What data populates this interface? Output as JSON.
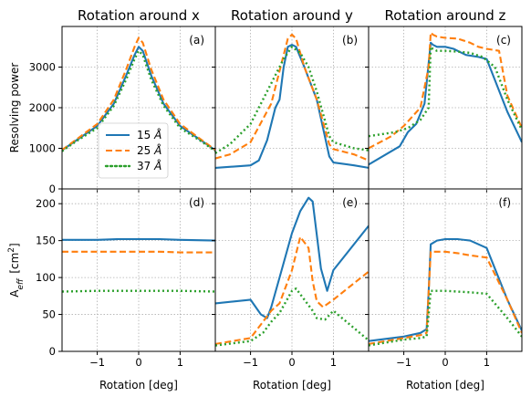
{
  "chart_data": {
    "type": "line",
    "column_titles": [
      "Rotation around x",
      "Rotation around y",
      "Rotation around z"
    ],
    "xlabel": "Rotation [deg]",
    "xlim": [
      -1.85,
      1.85
    ],
    "xticks": [
      -1,
      0,
      1
    ],
    "xtick_labels": [
      "−1",
      "0",
      "1"
    ],
    "grid": true,
    "legend": {
      "placement": "lower-right of panel (a)",
      "entries": [
        "15 Å",
        "25 Å",
        "37 Å"
      ]
    },
    "series_styles": [
      {
        "name": "15 Å",
        "color": "#1f77b4",
        "dash": "solid"
      },
      {
        "name": "25 Å",
        "color": "#ff7f0e",
        "dash": "dashed"
      },
      {
        "name": "37 Å",
        "color": "#2ca02c",
        "dash": "dotted"
      }
    ],
    "rows": [
      {
        "ylabel": "Resolving power",
        "ylim": [
          0,
          4000
        ],
        "yticks": [
          0,
          1000,
          2000,
          3000
        ],
        "ytick_labels": [
          "0",
          "1000",
          "2000",
          "3000"
        ],
        "panels": [
          {
            "letter": "(a)",
            "series": [
              {
                "name": "15 Å",
                "x": [
                  -1.85,
                  -1.5,
                  -1.0,
                  -0.6,
                  -0.3,
                  -0.1,
                  0.0,
                  0.1,
                  0.3,
                  0.6,
                  1.0,
                  1.5,
                  1.85
                ],
                "y": [
                  950,
                  1200,
                  1550,
                  2100,
                  2800,
                  3300,
                  3500,
                  3400,
                  2800,
                  2100,
                  1550,
                  1200,
                  950
                ]
              },
              {
                "name": "25 Å",
                "x": [
                  -1.85,
                  -1.5,
                  -1.0,
                  -0.6,
                  -0.3,
                  -0.1,
                  0.0,
                  0.1,
                  0.3,
                  0.6,
                  1.0,
                  1.5,
                  1.85
                ],
                "y": [
                  960,
                  1220,
                  1600,
                  2200,
                  2950,
                  3500,
                  3720,
                  3600,
                  2950,
                  2200,
                  1600,
                  1220,
                  960
                ]
              },
              {
                "name": "37 Å",
                "x": [
                  -1.85,
                  -1.5,
                  -1.0,
                  -0.6,
                  -0.3,
                  -0.1,
                  0.0,
                  0.1,
                  0.3,
                  0.6,
                  1.0,
                  1.5,
                  1.85
                ],
                "y": [
                  930,
                  1180,
                  1500,
                  2050,
                  2700,
                  3200,
                  3400,
                  3300,
                  2700,
                  2050,
                  1500,
                  1180,
                  930
                ]
              }
            ]
          },
          {
            "letter": "(b)",
            "series": [
              {
                "name": "15 Å",
                "x": [
                  -1.85,
                  -1.0,
                  -0.8,
                  -0.6,
                  -0.4,
                  -0.3,
                  -0.2,
                  -0.1,
                  0.0,
                  0.1,
                  0.3,
                  0.6,
                  0.9,
                  1.0,
                  1.5,
                  1.85
                ],
                "y": [
                  520,
                  580,
                  700,
                  1200,
                  2000,
                  2200,
                  3000,
                  3500,
                  3550,
                  3500,
                  3000,
                  2200,
                  800,
                  650,
                  580,
                  520
                ]
              },
              {
                "name": "25 Å",
                "x": [
                  -1.85,
                  -1.5,
                  -1.0,
                  -0.5,
                  -0.2,
                  -0.1,
                  0.0,
                  0.1,
                  0.3,
                  0.6,
                  0.9,
                  1.0,
                  1.5,
                  1.85
                ],
                "y": [
                  750,
                  850,
                  1150,
                  2100,
                  3300,
                  3700,
                  3800,
                  3700,
                  3000,
                  2200,
                  1100,
                  980,
                  850,
                  700
                ]
              },
              {
                "name": "37 Å",
                "x": [
                  -1.85,
                  -1.5,
                  -1.0,
                  -0.5,
                  -0.2,
                  0.0,
                  0.2,
                  0.4,
                  0.6,
                  0.9,
                  1.0,
                  1.5,
                  1.85
                ],
                "y": [
                  880,
                  1100,
                  1600,
                  2600,
                  3200,
                  3500,
                  3350,
                  3000,
                  2400,
                  1300,
                  1150,
                  1000,
                  950
                ]
              }
            ]
          },
          {
            "letter": "(c)",
            "series": [
              {
                "name": "15 Å",
                "x": [
                  -1.85,
                  -1.1,
                  -0.9,
                  -0.7,
                  -0.5,
                  -0.35,
                  -0.3,
                  -0.2,
                  0.0,
                  0.2,
                  0.5,
                  0.8,
                  1.0,
                  1.5,
                  1.85
                ],
                "y": [
                  600,
                  1050,
                  1400,
                  1600,
                  2100,
                  3600,
                  3550,
                  3500,
                  3500,
                  3450,
                  3300,
                  3250,
                  3200,
                  1900,
                  1150
                ]
              },
              {
                "name": "25 Å",
                "x": [
                  -1.85,
                  -1.3,
                  -1.0,
                  -0.6,
                  -0.4,
                  -0.35,
                  -0.3,
                  -0.2,
                  0.0,
                  0.3,
                  0.6,
                  0.8,
                  1.0,
                  1.3,
                  1.5,
                  1.85
                ],
                "y": [
                  1000,
                  1300,
                  1550,
                  2000,
                  3000,
                  3850,
                  3800,
                  3750,
                  3720,
                  3700,
                  3600,
                  3500,
                  3450,
                  3400,
                  2300,
                  1500
                ]
              },
              {
                "name": "37 Å",
                "x": [
                  -1.85,
                  -1.2,
                  -0.9,
                  -0.6,
                  -0.4,
                  -0.35,
                  -0.3,
                  -0.2,
                  0.0,
                  0.3,
                  0.6,
                  0.9,
                  1.2,
                  1.5,
                  1.85
                ],
                "y": [
                  1300,
                  1400,
                  1500,
                  1700,
                  2000,
                  3500,
                  3450,
                  3400,
                  3400,
                  3380,
                  3350,
                  3250,
                  3000,
                  2200,
                  1450
                ]
              }
            ]
          }
        ]
      },
      {
        "ylabel": "A_eff [cm²]",
        "ylim": [
          0,
          220
        ],
        "yticks": [
          0,
          50,
          100,
          150,
          200
        ],
        "ytick_labels": [
          "0",
          "50",
          "100",
          "150",
          "200"
        ],
        "panels": [
          {
            "letter": "(d)",
            "series": [
              {
                "name": "15 Å",
                "x": [
                  -1.85,
                  -1.0,
                  -0.5,
                  0.0,
                  0.5,
                  1.0,
                  1.85
                ],
                "y": [
                  151,
                  151,
                  152,
                  152,
                  152,
                  151,
                  150
                ]
              },
              {
                "name": "25 Å",
                "x": [
                  -1.85,
                  -1.0,
                  -0.5,
                  0.0,
                  0.5,
                  1.0,
                  1.85
                ],
                "y": [
                  135,
                  135,
                  135,
                  135,
                  135,
                  134,
                  134
                ]
              },
              {
                "name": "37 Å",
                "x": [
                  -1.85,
                  -1.0,
                  -0.5,
                  0.0,
                  0.5,
                  1.0,
                  1.85
                ],
                "y": [
                  81,
                  82,
                  82,
                  82,
                  82,
                  82,
                  81
                ]
              }
            ]
          },
          {
            "letter": "(e)",
            "series": [
              {
                "name": "15 Å",
                "x": [
                  -1.85,
                  -1.0,
                  -0.75,
                  -0.6,
                  -0.5,
                  -0.3,
                  0.0,
                  0.2,
                  0.4,
                  0.5,
                  0.7,
                  0.85,
                  1.0,
                  1.85
                ],
                "y": [
                  65,
                  70,
                  50,
                  45,
                  60,
                  100,
                  160,
                  190,
                  208,
                  203,
                  112,
                  82,
                  110,
                  170
                ]
              },
              {
                "name": "25 Å",
                "x": [
                  -1.85,
                  -1.0,
                  -0.7,
                  -0.5,
                  -0.3,
                  0.0,
                  0.2,
                  0.4,
                  0.5,
                  0.6,
                  0.75,
                  1.0,
                  1.85
                ],
                "y": [
                  10,
                  18,
                  40,
                  55,
                  65,
                  110,
                  155,
                  140,
                  95,
                  68,
                  60,
                  70,
                  108
                ]
              },
              {
                "name": "37 Å",
                "x": [
                  -1.85,
                  -1.0,
                  -0.7,
                  -0.5,
                  -0.3,
                  0.0,
                  0.1,
                  0.3,
                  0.5,
                  0.6,
                  0.8,
                  1.0,
                  1.85
                ],
                "y": [
                  8,
                  14,
                  25,
                  40,
                  52,
                  82,
                  85,
                  70,
                  55,
                  45,
                  43,
                  55,
                  15
                ]
              }
            ]
          },
          {
            "letter": "(f)",
            "series": [
              {
                "name": "15 Å",
                "x": [
                  -1.85,
                  -1.0,
                  -0.6,
                  -0.45,
                  -0.4,
                  -0.35,
                  -0.2,
                  0.0,
                  0.3,
                  0.6,
                  1.0,
                  1.5,
                  1.85
                ],
                "y": [
                  14,
                  20,
                  25,
                  30,
                  80,
                  145,
                  150,
                  152,
                  152,
                  150,
                  140,
                  70,
                  28
                ]
              },
              {
                "name": "25 Å",
                "x": [
                  -1.85,
                  -1.0,
                  -0.6,
                  -0.45,
                  -0.4,
                  -0.35,
                  -0.2,
                  0.0,
                  0.3,
                  0.6,
                  1.0,
                  1.5,
                  1.85
                ],
                "y": [
                  10,
                  18,
                  22,
                  25,
                  80,
                  135,
                  135,
                  135,
                  133,
                  130,
                  127,
                  70,
                  25
                ]
              },
              {
                "name": "37 Å",
                "x": [
                  -1.85,
                  -1.0,
                  -0.6,
                  -0.45,
                  -0.4,
                  -0.35,
                  -0.2,
                  0.0,
                  0.3,
                  0.6,
                  1.0,
                  1.5,
                  1.85
                ],
                "y": [
                  8,
                  16,
                  18,
                  20,
                  50,
                  82,
                  82,
                  82,
                  81,
                  80,
                  78,
                  45,
                  20
                ]
              }
            ]
          }
        ]
      }
    ]
  }
}
